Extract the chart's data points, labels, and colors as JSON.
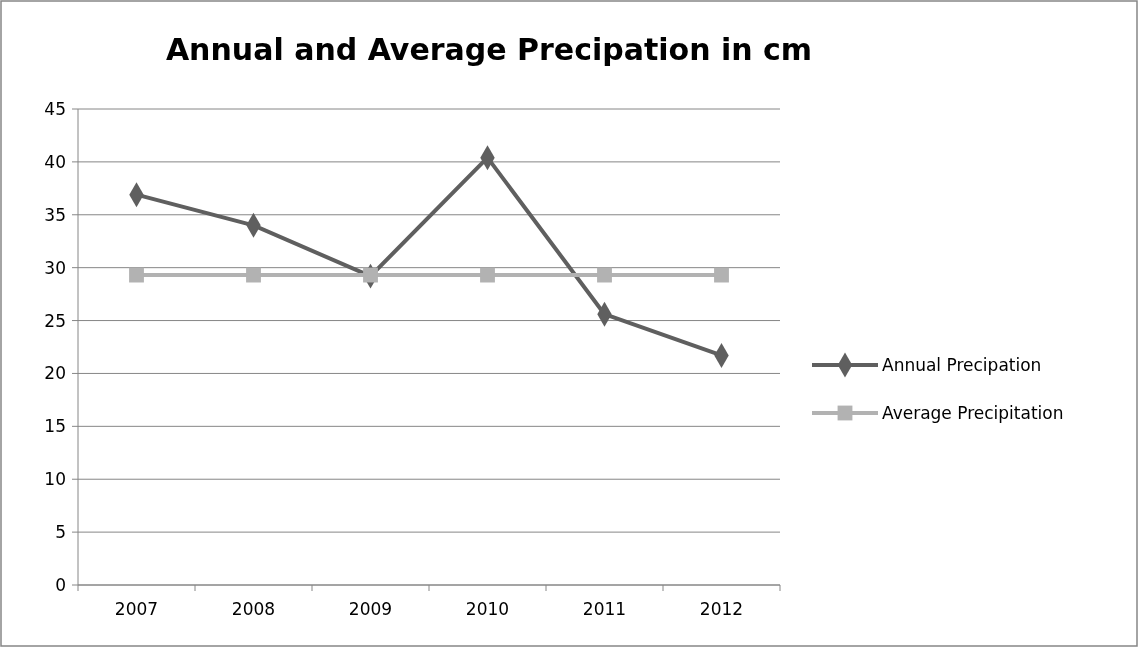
{
  "chart_data": {
    "type": "line",
    "title": "Annual and Average Precipation in cm",
    "categories": [
      "2007",
      "2008",
      "2009",
      "2010",
      "2011",
      "2012"
    ],
    "series": [
      {
        "name": "Annual Precipation",
        "color": "#5f5f5f",
        "marker": "diamond",
        "values": [
          36.9,
          34,
          29.2,
          40.4,
          25.6,
          21.7
        ]
      },
      {
        "name": "Average Precipitation",
        "color": "#b2b2b2",
        "marker": "square",
        "values": [
          29.3,
          29.3,
          29.3,
          29.3,
          29.3,
          29.3
        ]
      }
    ],
    "ylim": [
      0,
      45
    ],
    "yticks": [
      0,
      5,
      10,
      15,
      20,
      25,
      30,
      35,
      40,
      45
    ],
    "grid": "y",
    "legend": "right"
  }
}
